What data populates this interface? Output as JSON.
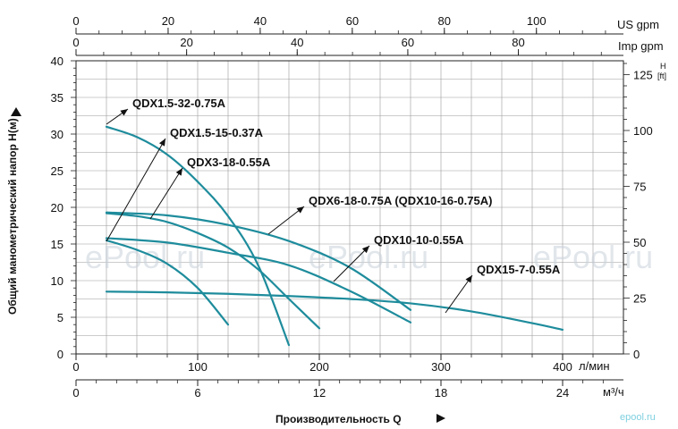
{
  "chart_data": {
    "type": "line",
    "x_axes": {
      "lpm": {
        "unit": "л/мин",
        "ticks": [
          0,
          100,
          200,
          300,
          400
        ],
        "range": [
          0,
          450
        ]
      },
      "m3h": {
        "unit": "м³/ч",
        "ticks": [
          0,
          6,
          12,
          18,
          24
        ],
        "range": [
          0,
          27
        ]
      },
      "us_gpm": {
        "unit": "US gpm",
        "ticks": [
          0,
          20,
          40,
          60,
          80,
          100
        ],
        "range": [
          0,
          118.9
        ]
      },
      "imp_gpm": {
        "unit": "Imp gpm",
        "ticks": [
          0,
          20,
          40,
          60,
          80
        ],
        "range": [
          0,
          99
        ]
      }
    },
    "y_axes": {
      "left": {
        "label": "Общий манометрический напор H(м)",
        "ticks": [
          0,
          5,
          10,
          15,
          20,
          25,
          30,
          35,
          40
        ],
        "range": [
          0,
          40
        ]
      },
      "right": {
        "unit_top": "H",
        "unit_bottom": "[ft]",
        "ticks": [
          0,
          25,
          50,
          75,
          100,
          125
        ],
        "range": [
          0,
          131.2
        ]
      }
    },
    "xlabel": "Производительность Q",
    "series": [
      {
        "name": "QDX1.5-32-0.75A",
        "x": [
          25,
          50,
          75,
          100,
          125,
          150,
          175
        ],
        "y": [
          31,
          29.6,
          27.2,
          23.5,
          18.8,
          12,
          1.2
        ]
      },
      {
        "name": "QDX1.5-15-0.37A",
        "x": [
          25,
          50,
          75,
          100,
          125
        ],
        "y": [
          15.5,
          14.2,
          12.3,
          9,
          4
        ]
      },
      {
        "name": "QDX3-18-0.55A",
        "x": [
          25,
          50,
          75,
          100,
          125,
          150,
          175,
          200
        ],
        "y": [
          19.2,
          18.8,
          18,
          16.5,
          14.5,
          11.5,
          7.5,
          3.5
        ]
      },
      {
        "name": "QDX6-18-0.75A (QDX10-16-0.75A)",
        "x": [
          25,
          75,
          125,
          175,
          225,
          275
        ],
        "y": [
          19.3,
          18.9,
          17.6,
          15.4,
          11.8,
          6
        ]
      },
      {
        "name": "QDX10-10-0.55A",
        "x": [
          25,
          75,
          125,
          175,
          225,
          275
        ],
        "y": [
          15.8,
          15.2,
          13.8,
          12.1,
          8.6,
          4.3
        ]
      },
      {
        "name": "QDX15-7-0.55A",
        "x": [
          25,
          75,
          125,
          175,
          225,
          275,
          325,
          375,
          400
        ],
        "y": [
          8.5,
          8.4,
          8.2,
          7.9,
          7.5,
          6.9,
          5.8,
          4.2,
          3.3
        ]
      }
    ],
    "annotations": [
      {
        "text": "QDX1.5-32-0.75A",
        "series": "QDX1.5-32-0.75A"
      },
      {
        "text": "QDX1.5-15-0.37A",
        "series": "QDX1.5-15-0.37A"
      },
      {
        "text": "QDX3-18-0.55A",
        "series": "QDX3-18-0.55A"
      },
      {
        "text": "QDX6-18-0.75A (QDX10-16-0.75A)",
        "series": "QDX6-18-0.75A (QDX10-16-0.75A)"
      },
      {
        "text": "QDX10-10-0.55A",
        "series": "QDX10-10-0.55A"
      },
      {
        "text": "QDX15-7-0.55A",
        "series": "QDX15-7-0.55A"
      }
    ],
    "grid": true,
    "line_color": "#1e8c9c"
  },
  "watermarks": {
    "large": "ePool.ru",
    "small": "epool.ru"
  }
}
